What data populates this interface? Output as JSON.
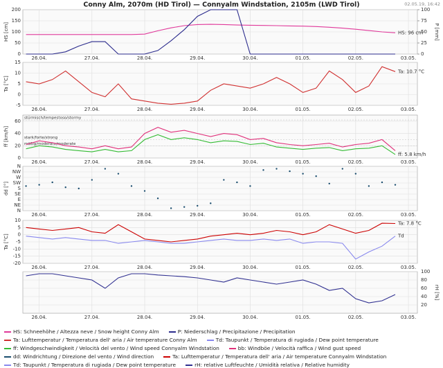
{
  "title": "Conny Alm, 2070m (HD Tirol) — Connyalm Windstation, 2105m (LWD Tirol)",
  "timestamp": "02.05.19, 16:42",
  "chart_data": [
    {
      "type": "line",
      "ylabel": "HS [cm]",
      "y2label": "P [mm]",
      "grid": true,
      "xlim": [
        25.69,
        33.17
      ],
      "xticks": [
        {
          "value": 26,
          "label": "26.04."
        },
        {
          "value": 27,
          "label": "27.04."
        },
        {
          "value": 28,
          "label": "28.04."
        },
        {
          "value": 29,
          "label": "29.04."
        },
        {
          "value": 30,
          "label": "30.04."
        },
        {
          "value": 31,
          "label": "01.05."
        },
        {
          "value": 32,
          "label": "02.05."
        },
        {
          "value": 33,
          "label": "03.05."
        }
      ],
      "ylim": [
        0,
        200
      ],
      "yticks": [
        0,
        50,
        100,
        150,
        200
      ],
      "y2lim": [
        0,
        100
      ],
      "y2ticks": [
        0,
        25,
        50,
        75,
        100
      ],
      "x": [
        25.75,
        26,
        26.25,
        26.5,
        26.75,
        27,
        27.25,
        27.5,
        27.75,
        28,
        28.25,
        28.5,
        28.75,
        29,
        29.25,
        29.5,
        29.75,
        30,
        30.25,
        30.5,
        30.75,
        31,
        31.25,
        31.5,
        31.75,
        32,
        32.25,
        32.5,
        32.75
      ],
      "series": [
        {
          "name": "HS: Schneehöhe / Altezza neve / Snow height  Conny Alm",
          "color": "#e0389a",
          "end_label": "HS: 96 cm",
          "values": [
            88,
            88,
            88,
            88,
            88,
            88,
            88,
            88,
            88,
            90,
            105,
            118,
            128,
            133,
            134,
            133,
            131,
            130,
            129,
            128,
            127,
            126,
            124,
            121,
            117,
            112,
            106,
            100,
            96
          ]
        },
        {
          "name": "P: Niederschlag / Precipitazione / Precipitation",
          "color": "#2a2a8c",
          "axis": "y2",
          "values": [
            0,
            0,
            0,
            5,
            18,
            28,
            28,
            0,
            0,
            0,
            8,
            30,
            55,
            85,
            100,
            100,
            100,
            0,
            0,
            0,
            0,
            0,
            0,
            0,
            0,
            0,
            0,
            0,
            0
          ]
        }
      ]
    },
    {
      "type": "line",
      "ylabel": "Ta [°C]",
      "grid": true,
      "xlim": [
        25.69,
        33.17
      ],
      "xticks": [
        {
          "value": 26,
          "label": "26.04."
        },
        {
          "value": 27,
          "label": "27.04."
        },
        {
          "value": 28,
          "label": "28.04."
        },
        {
          "value": 29,
          "label": "29.04."
        },
        {
          "value": 30,
          "label": "30.04."
        },
        {
          "value": 31,
          "label": "01.05."
        },
        {
          "value": 32,
          "label": "02.05."
        },
        {
          "value": 33,
          "label": "03.05."
        }
      ],
      "ylim": [
        -5,
        15
      ],
      "yticks": [
        -5,
        0,
        5,
        10,
        15
      ],
      "x": [
        25.75,
        26,
        26.25,
        26.5,
        26.75,
        27,
        27.25,
        27.5,
        27.75,
        28,
        28.25,
        28.5,
        28.75,
        29,
        29.25,
        29.5,
        29.75,
        30,
        30.25,
        30.5,
        30.75,
        31,
        31.25,
        31.5,
        31.75,
        32,
        32.25,
        32.5,
        32.75
      ],
      "series": [
        {
          "name": "Ta: Lufttemperatur / Temperatura dell' aria / Air temperature  Conny Alm",
          "color": "#d03030",
          "end_label": "Ta: 10.7 °C",
          "values": [
            6,
            5,
            7,
            11,
            6,
            1,
            -1,
            5,
            -2,
            -3,
            -4,
            -4.5,
            -4,
            -3,
            2,
            5,
            4,
            3,
            5,
            8,
            5,
            1,
            3,
            11,
            7,
            1,
            4,
            13,
            10.7
          ]
        },
        {
          "name": "Td: Taupunkt / Temperatura di rugiada / Dew point temperature",
          "color": "#8888ee",
          "values": [
            null,
            null,
            null,
            null,
            null,
            null,
            null,
            null,
            null,
            null,
            null,
            null,
            null,
            null,
            null,
            null,
            null,
            null,
            null,
            null,
            null,
            null,
            null,
            null,
            null,
            null,
            null,
            null,
            null
          ]
        }
      ]
    },
    {
      "type": "line",
      "ylabel": "ff [km/h]",
      "grid": true,
      "xlim": [
        25.69,
        33.17
      ],
      "xticks": [
        {
          "value": 26,
          "label": "26.04."
        },
        {
          "value": 27,
          "label": "27.04."
        },
        {
          "value": 28,
          "label": "28.04."
        },
        {
          "value": 29,
          "label": "29.04."
        },
        {
          "value": 30,
          "label": "30.04."
        },
        {
          "value": 31,
          "label": "01.05."
        },
        {
          "value": 32,
          "label": "02.05."
        },
        {
          "value": 33,
          "label": "03.05."
        }
      ],
      "ylim": [
        0,
        70
      ],
      "yticks": [
        0,
        20,
        40,
        60
      ],
      "bands": [
        {
          "label": "stürmisch/tempestoso/stormy",
          "value": 62
        },
        {
          "label": "stark/forte/strong",
          "value": 30
        },
        {
          "label": "mäßig/moderato/moderate",
          "value": 20
        }
      ],
      "x": [
        25.75,
        26,
        26.25,
        26.5,
        26.75,
        27,
        27.25,
        27.5,
        27.75,
        28,
        28.25,
        28.5,
        28.75,
        29,
        29.25,
        29.5,
        29.75,
        30,
        30.25,
        30.5,
        30.75,
        31,
        31.25,
        31.5,
        31.75,
        32,
        32.25,
        32.5,
        32.75
      ],
      "series": [
        {
          "name": "ff: Windgeschwindigkeit / Velocità del vento / Wind speed  Connyalm Windstation",
          "color": "#33bb33",
          "end_label": "ff: 5.8 km/h",
          "values": [
            15,
            20,
            18,
            14,
            12,
            10,
            14,
            10,
            12,
            30,
            38,
            30,
            33,
            30,
            25,
            28,
            27,
            22,
            24,
            18,
            16,
            14,
            16,
            17,
            12,
            15,
            16,
            20,
            5.8
          ]
        },
        {
          "name": "bb: Windböe / Velocità raffica / Wind gust speed",
          "color": "#e0307a",
          "values": [
            22,
            28,
            25,
            20,
            18,
            15,
            20,
            15,
            18,
            40,
            50,
            42,
            45,
            40,
            35,
            40,
            38,
            30,
            32,
            25,
            22,
            20,
            22,
            24,
            18,
            22,
            24,
            30,
            12
          ]
        }
      ]
    },
    {
      "type": "scatter",
      "ylabel": "dd [°]",
      "grid": true,
      "xlim": [
        25.69,
        33.17
      ],
      "xticks": [
        {
          "value": 26,
          "label": "26.04."
        },
        {
          "value": 27,
          "label": "27.04."
        },
        {
          "value": 28,
          "label": "28.04."
        },
        {
          "value": 29,
          "label": "29.04."
        },
        {
          "value": 30,
          "label": "30.04."
        },
        {
          "value": 31,
          "label": "01.05."
        },
        {
          "value": 32,
          "label": "02.05."
        },
        {
          "value": 33,
          "label": "03.05."
        }
      ],
      "ylim": [
        0,
        360
      ],
      "yticks": [
        {
          "value": 360,
          "label": "N"
        },
        {
          "value": 315,
          "label": "NW"
        },
        {
          "value": 270,
          "label": "W"
        },
        {
          "value": 225,
          "label": "SW"
        },
        {
          "value": 180,
          "label": "S"
        },
        {
          "value": 135,
          "label": "SE"
        },
        {
          "value": 90,
          "label": "E"
        },
        {
          "value": 45,
          "label": "NE"
        },
        {
          "value": 0,
          "label": "N"
        }
      ],
      "x": [
        25.75,
        26,
        26.25,
        26.5,
        26.75,
        27,
        27.25,
        27.5,
        27.75,
        28,
        28.25,
        28.5,
        28.75,
        29,
        29.25,
        29.5,
        29.75,
        30,
        30.25,
        30.5,
        30.75,
        31,
        31.25,
        31.5,
        31.75,
        32,
        32.25,
        32.5,
        32.75
      ],
      "series": [
        {
          "name": "dd: Windrichtung / Direzione del vento / Wind direction",
          "color": "#1a4d6e",
          "values": [
            200,
            210,
            230,
            190,
            180,
            250,
            340,
            300,
            200,
            160,
            100,
            20,
            30,
            40,
            60,
            250,
            230,
            200,
            330,
            340,
            320,
            300,
            280,
            220,
            340,
            300,
            200,
            230,
            210
          ]
        }
      ]
    },
    {
      "type": "line",
      "ylabel": "Ta [°C]",
      "grid": true,
      "xlim": [
        25.69,
        33.17
      ],
      "xticks": [
        {
          "value": 26,
          "label": "26.04."
        },
        {
          "value": 27,
          "label": "27.04."
        },
        {
          "value": 28,
          "label": "28.04."
        },
        {
          "value": 29,
          "label": "29.04."
        },
        {
          "value": 30,
          "label": "30.04."
        },
        {
          "value": 31,
          "label": "01.05."
        },
        {
          "value": 32,
          "label": "02.05."
        },
        {
          "value": 33,
          "label": "03.05."
        }
      ],
      "ylim": [
        -20,
        10
      ],
      "yticks": [
        -20,
        -15,
        -10,
        -5,
        0,
        5,
        10
      ],
      "x": [
        25.75,
        26,
        26.25,
        26.5,
        26.75,
        27,
        27.25,
        27.5,
        27.75,
        28,
        28.25,
        28.5,
        28.75,
        29,
        29.25,
        29.5,
        29.75,
        30,
        30.25,
        30.5,
        30.75,
        31,
        31.25,
        31.5,
        31.75,
        32,
        32.25,
        32.5,
        32.75
      ],
      "series": [
        {
          "name": "Ta: Lufttemperatur / Temperatura dell' aria / Air temperature  Connyalm Windstation",
          "color": "#cc0000",
          "end_label": "Ta: 7.8 °C",
          "values": [
            5,
            4,
            3,
            4,
            5,
            2,
            1,
            7,
            2,
            -3,
            -4,
            -5,
            -4,
            -3,
            -1,
            0,
            1,
            0,
            1,
            3,
            2,
            0,
            2,
            7,
            4,
            1,
            3,
            8,
            7.8
          ]
        },
        {
          "name": "Td: Taupunkt / Temperatura di rugiada / Dew point temperature",
          "color": "#8888ee",
          "end_label": "Td",
          "values": [
            -1,
            -2,
            -3,
            -2,
            -3,
            -4,
            -4,
            -6,
            -5,
            -4,
            -5,
            -6,
            -6,
            -5,
            -4,
            -3,
            -4,
            -4,
            -3,
            -4,
            -3,
            -6,
            -5,
            -5,
            -6,
            -17,
            -12,
            -8,
            -1
          ]
        }
      ]
    },
    {
      "type": "line",
      "y2label": "rH [%]",
      "grid": true,
      "xlim": [
        25.69,
        33.17
      ],
      "xticks": [
        {
          "value": 26,
          "label": "26.04."
        },
        {
          "value": 27,
          "label": "27.04."
        },
        {
          "value": 28,
          "label": "28.04."
        },
        {
          "value": 29,
          "label": "29.04."
        },
        {
          "value": 30,
          "label": "30.04."
        },
        {
          "value": 31,
          "label": "01.05."
        },
        {
          "value": 32,
          "label": "02.05."
        },
        {
          "value": 33,
          "label": "03.05."
        }
      ],
      "y2lim": [
        0,
        100
      ],
      "y2ticks": [
        20,
        40,
        60,
        80,
        100
      ],
      "x": [
        25.75,
        26,
        26.25,
        26.5,
        26.75,
        27,
        27.25,
        27.5,
        27.75,
        28,
        28.25,
        28.5,
        28.75,
        29,
        29.25,
        29.5,
        29.75,
        30,
        30.25,
        30.5,
        30.75,
        31,
        31.25,
        31.5,
        31.75,
        32,
        32.25,
        32.5,
        32.75
      ],
      "series": [
        {
          "name": "rH: relative Luftfeuchte / Umidità relativa / Relative humidity",
          "color": "#2f2f90",
          "axis": "y2",
          "values": [
            90,
            95,
            95,
            90,
            85,
            80,
            60,
            85,
            95,
            95,
            92,
            90,
            88,
            85,
            80,
            75,
            85,
            80,
            75,
            70,
            75,
            80,
            70,
            55,
            60,
            35,
            25,
            30,
            45
          ]
        }
      ]
    }
  ]
}
